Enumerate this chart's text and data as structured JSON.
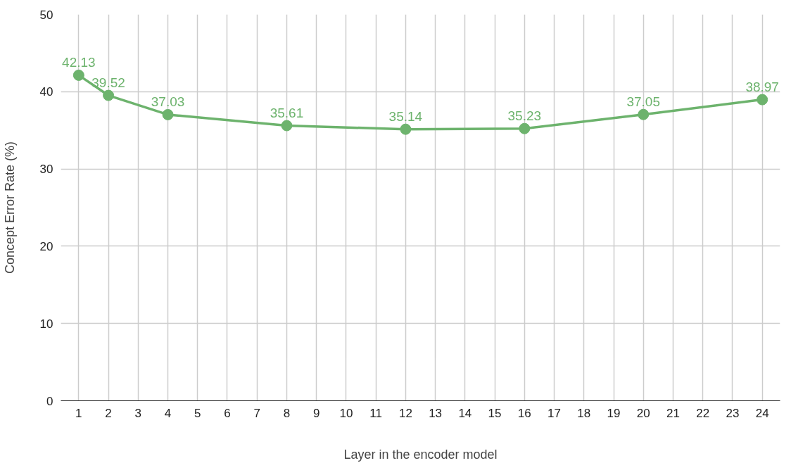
{
  "chart_data": {
    "type": "line",
    "xlabel": "Layer in the encoder model",
    "ylabel": "Concept Error Rate (%)",
    "x": [
      1,
      2,
      4,
      8,
      12,
      16,
      20,
      24
    ],
    "series": [
      {
        "color": "#6db36d",
        "values": [
          42.13,
          39.52,
          37.03,
          35.61,
          35.14,
          35.23,
          37.05,
          38.97
        ]
      }
    ],
    "xlim": [
      0.4,
      24.6
    ],
    "xticks": [
      1,
      2,
      3,
      4,
      5,
      6,
      7,
      8,
      9,
      10,
      11,
      12,
      13,
      14,
      15,
      16,
      17,
      18,
      19,
      20,
      21,
      22,
      23,
      24
    ],
    "ylim": [
      0,
      50
    ],
    "yticks": [
      0,
      10,
      20,
      30,
      40,
      50
    ],
    "grid": true,
    "marker": "circle",
    "line_style": "solid",
    "data_labels": true
  }
}
